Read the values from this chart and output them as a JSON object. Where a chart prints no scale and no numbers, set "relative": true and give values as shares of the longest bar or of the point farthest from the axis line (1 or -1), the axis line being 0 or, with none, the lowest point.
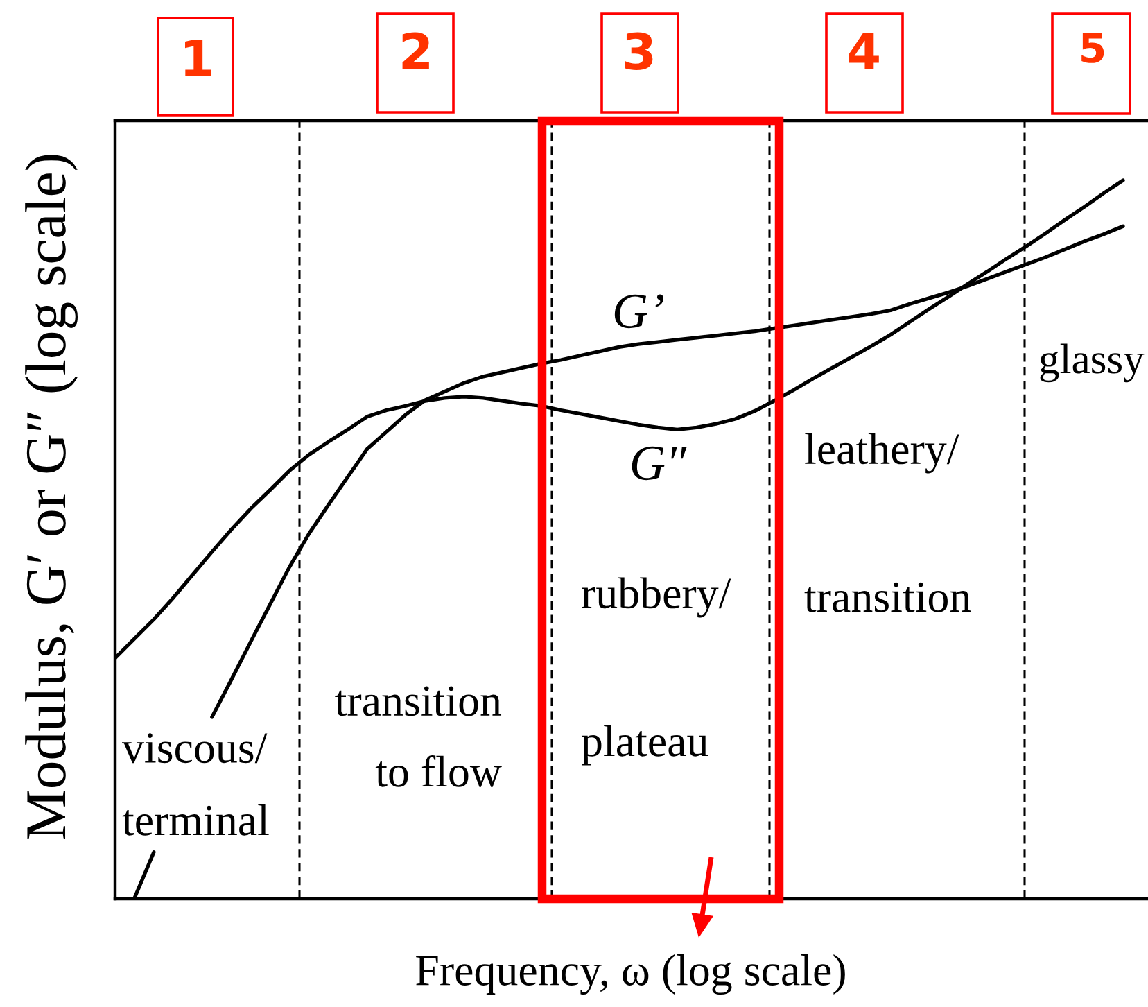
{
  "chart_data": {
    "type": "line",
    "relative": true,
    "xlabel": "Frequency, ω (log scale)",
    "ylabel": "Modulus, G′ or G″ (log scale)",
    "categories": [
      null,
      null,
      null,
      null,
      null,
      null,
      null,
      null,
      null,
      null,
      null,
      null,
      null,
      null,
      null,
      null,
      null,
      null,
      null,
      null,
      null,
      null,
      null,
      null,
      null,
      null,
      null,
      null,
      null,
      null,
      null,
      null,
      null,
      null,
      null,
      null,
      null,
      null,
      null,
      null,
      null,
      null,
      null,
      null,
      null,
      null,
      null,
      null,
      null,
      null,
      null,
      null,
      null
    ],
    "series": [
      {
        "name": "G’",
        "color": "#000000",
        "values": [
          null,
          0.001,
          0.065,
          null,
          null,
          0.253,
          0.305,
          0.358,
          0.41,
          0.462,
          0.508,
          0.548,
          0.587,
          0.626,
          0.65,
          0.674,
          0.694,
          0.706,
          0.718,
          0.727,
          0.733,
          0.739,
          0.745,
          0.75,
          0.756,
          0.762,
          0.768,
          0.772,
          0.775,
          0.778,
          0.781,
          0.784,
          0.787,
          0.79,
          0.794,
          0.798,
          0.802,
          0.806,
          0.81,
          0.814,
          0.819,
          0.828,
          0.836,
          0.844,
          0.853,
          0.863,
          0.873,
          0.883,
          0.893,
          0.904,
          0.915,
          0.925,
          0.936
        ]
      },
      {
        "name": "G″",
        "color": "#000000",
        "values": [
          0.335,
          0.362,
          0.389,
          0.419,
          0.451,
          0.483,
          0.514,
          0.543,
          0.569,
          0.596,
          0.618,
          0.636,
          0.653,
          0.671,
          0.68,
          0.686,
          0.693,
          0.697,
          0.699,
          0.697,
          0.693,
          0.689,
          0.686,
          0.68,
          0.675,
          0.67,
          0.665,
          0.66,
          0.656,
          0.653,
          0.656,
          0.661,
          0.668,
          0.679,
          0.693,
          0.708,
          0.724,
          0.739,
          0.754,
          0.769,
          0.785,
          0.803,
          0.821,
          0.838,
          0.856,
          0.873,
          0.891,
          0.908,
          0.926,
          0.945,
          0.963,
          0.982,
          1.0
        ]
      }
    ],
    "annotations": [
      "1",
      "2",
      "3",
      "4",
      "5",
      "viscous/\nterminal",
      "transition\nto flow",
      "rubbery/\nplateau",
      "leathery/\ntransition",
      "glassy"
    ]
  }
}
